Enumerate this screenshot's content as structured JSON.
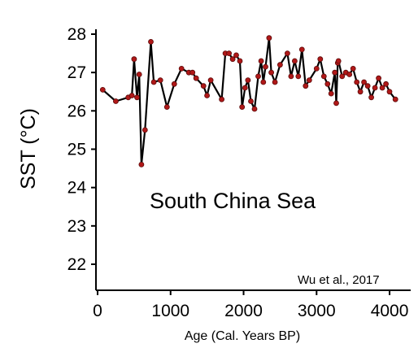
{
  "chart_data": {
    "type": "line",
    "title": "",
    "xlabel": "Age (Cal. Years BP)",
    "ylabel": "SST (°C)",
    "xlim": [
      0,
      4200
    ],
    "ylim": [
      22,
      28
    ],
    "x_ticks": [
      0,
      1000,
      2000,
      3000,
      4000
    ],
    "x_tick_labels": [
      "0",
      "1000",
      "2000",
      "3000",
      "4000"
    ],
    "y_ticks": [
      22,
      23,
      24,
      25,
      26,
      27,
      28
    ],
    "y_tick_labels": [
      "22",
      "23",
      "24",
      "25",
      "26",
      "27",
      "28"
    ],
    "grid": false,
    "annotations": {
      "region": "South China Sea",
      "citation": "Wu et al., 2017"
    },
    "colors": {
      "line": "#000000",
      "marker": "#b01818",
      "marker_edge": "#5a0a0a"
    },
    "series": [
      {
        "x": [
          70,
          250,
          420,
          470,
          500,
          540,
          570,
          600,
          650,
          730,
          770,
          860,
          950,
          1050,
          1150,
          1250,
          1300,
          1350,
          1450,
          1500,
          1550,
          1700,
          1750,
          1800,
          1850,
          1900,
          1950,
          1980,
          2020,
          2060,
          2100,
          2150,
          2200,
          2240,
          2270,
          2300,
          2350,
          2380,
          2430,
          2500,
          2600,
          2650,
          2700,
          2750,
          2800,
          2850,
          2900,
          3000,
          3050,
          3100,
          3150,
          3200,
          3250,
          3270,
          3290,
          3300,
          3350,
          3400,
          3450,
          3500,
          3550,
          3600,
          3650,
          3700,
          3750,
          3800,
          3850,
          3900,
          3950,
          4000,
          4080
        ],
        "y": [
          26.55,
          26.25,
          26.35,
          26.4,
          27.35,
          26.35,
          26.95,
          24.6,
          25.5,
          27.8,
          26.75,
          26.8,
          26.1,
          26.7,
          27.1,
          27.0,
          27.0,
          26.85,
          26.65,
          26.4,
          26.8,
          26.3,
          27.5,
          27.5,
          27.35,
          27.45,
          27.3,
          26.1,
          26.6,
          26.8,
          26.25,
          26.05,
          26.9,
          27.3,
          26.75,
          27.15,
          27.9,
          27.0,
          26.75,
          27.2,
          27.5,
          26.9,
          27.3,
          26.9,
          27.6,
          26.65,
          26.8,
          27.1,
          27.35,
          26.9,
          26.7,
          26.45,
          27.0,
          26.2,
          27.25,
          27.3,
          26.9,
          27.0,
          26.95,
          27.1,
          26.75,
          26.5,
          26.75,
          26.65,
          26.35,
          26.6,
          26.85,
          26.6,
          26.7,
          26.5,
          26.3
        ]
      }
    ]
  }
}
